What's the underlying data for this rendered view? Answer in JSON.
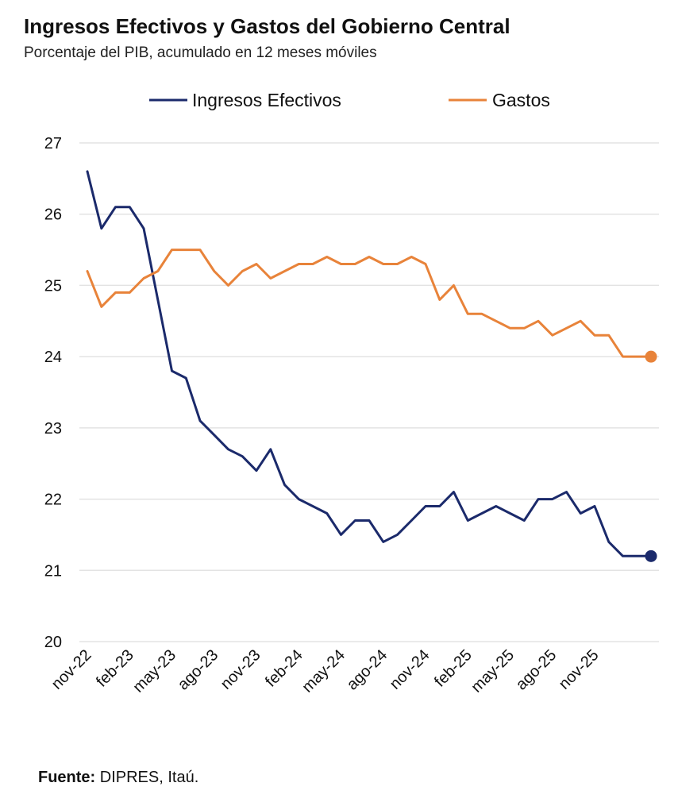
{
  "title": "Ingresos Efectivos y Gastos del Gobierno Central",
  "subtitle": "Porcentaje del PIB, acumulado en 12 meses móviles",
  "source_label": "Fuente:",
  "source_text": " DIPRES, Itaú.",
  "colors": {
    "ingresos": "#1b2a6b",
    "gastos": "#e8833a",
    "grid": "#e3e3e3",
    "text": "#111111"
  },
  "chart_data": {
    "type": "line",
    "title": "Ingresos Efectivos y Gastos del Gobierno Central",
    "subtitle": "Porcentaje del PIB, acumulado en 12 meses móviles",
    "xlabel": "",
    "ylabel": "",
    "ylim": [
      20,
      27
    ],
    "yticks": [
      20,
      21,
      22,
      23,
      24,
      25,
      26,
      27
    ],
    "grid": true,
    "legend_position": "top-center",
    "x": [
      "nov-22",
      "dic-22",
      "ene-23",
      "feb-23",
      "mar-23",
      "abr-23",
      "may-23",
      "jun-23",
      "jul-23",
      "ago-23",
      "sep-23",
      "oct-23",
      "nov-23",
      "dic-23",
      "ene-24",
      "feb-24",
      "mar-24",
      "abr-24",
      "may-24",
      "jun-24",
      "jul-24",
      "ago-24",
      "sep-24",
      "oct-24",
      "nov-24",
      "dic-24",
      "ene-25",
      "feb-25",
      "mar-25",
      "abr-25",
      "may-25",
      "jun-25",
      "jul-25",
      "ago-25",
      "sep-25",
      "oct-25",
      "nov-25",
      "dic-25",
      "ene-26",
      "feb-26",
      "mar-26"
    ],
    "tick_labels": [
      "nov-22",
      "feb-23",
      "may-23",
      "ago-23",
      "nov-23",
      "feb-24",
      "may-24",
      "ago-24",
      "nov-24",
      "feb-25",
      "may-25",
      "ago-25",
      "nov-25"
    ],
    "series": [
      {
        "name": "Ingresos Efectivos",
        "color": "#1b2a6b",
        "values": [
          26.6,
          25.8,
          26.1,
          26.1,
          25.8,
          24.8,
          23.8,
          23.7,
          23.1,
          22.9,
          22.7,
          22.6,
          22.4,
          22.7,
          22.2,
          22.0,
          21.9,
          21.8,
          21.5,
          21.7,
          21.7,
          21.4,
          21.5,
          21.7,
          21.9,
          21.9,
          22.1,
          21.7,
          21.8,
          21.9,
          21.8,
          21.7,
          22.0,
          22.0,
          22.1,
          21.8,
          21.9,
          21.4,
          21.2,
          21.2,
          21.2
        ]
      },
      {
        "name": "Gastos",
        "color": "#e8833a",
        "values": [
          25.2,
          24.7,
          24.9,
          24.9,
          25.1,
          25.2,
          25.5,
          25.5,
          25.5,
          25.2,
          25.0,
          25.2,
          25.3,
          25.1,
          25.2,
          25.3,
          25.3,
          25.4,
          25.3,
          25.3,
          25.4,
          25.3,
          25.3,
          25.4,
          25.3,
          24.8,
          25.0,
          24.6,
          24.6,
          24.5,
          24.4,
          24.4,
          24.5,
          24.3,
          24.4,
          24.5,
          24.3,
          24.3,
          24.0,
          24.0,
          24.0
        ]
      }
    ]
  }
}
